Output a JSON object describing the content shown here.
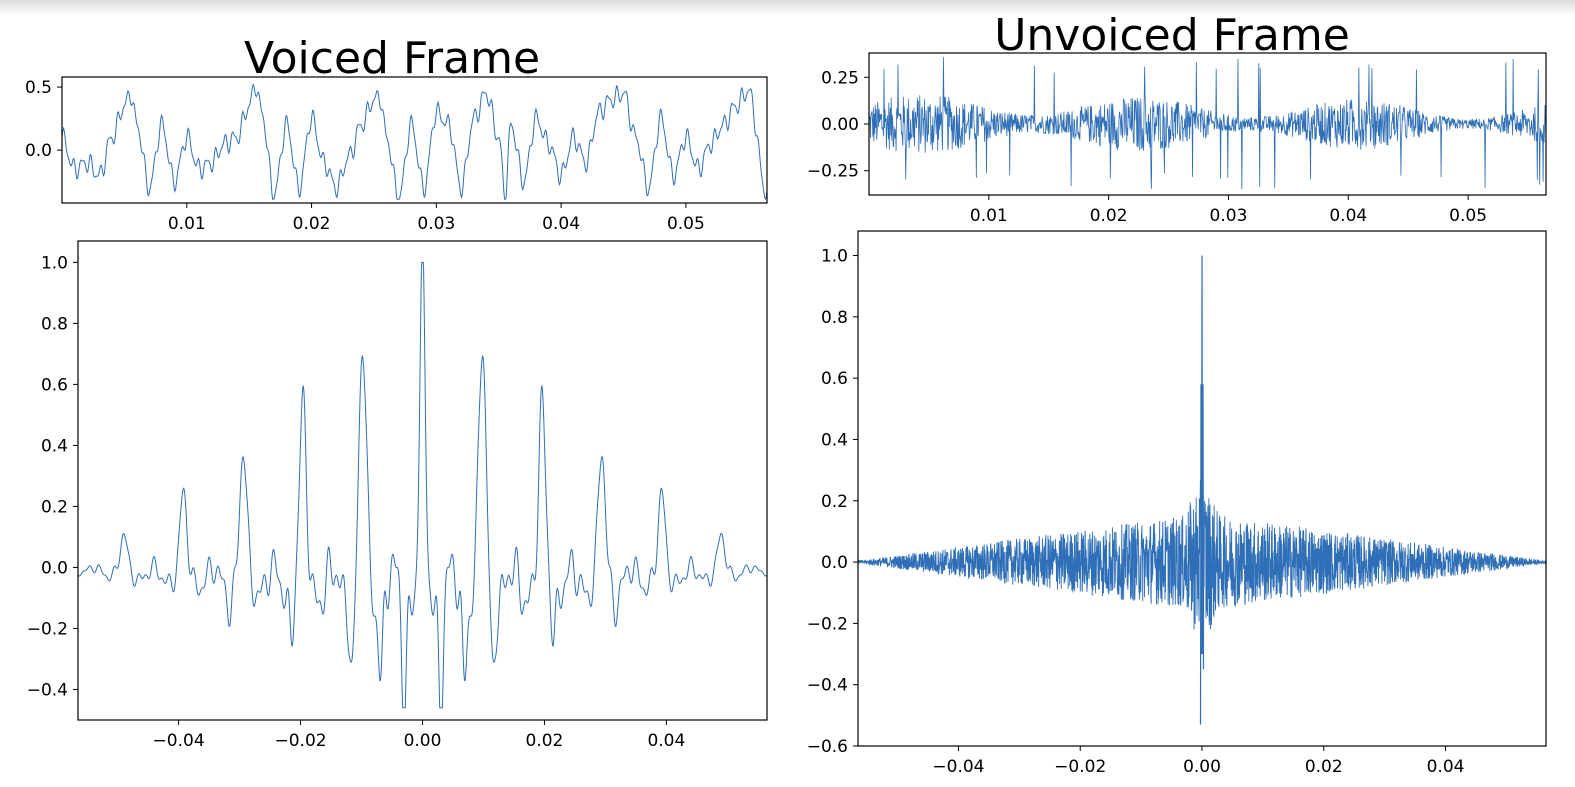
{
  "panels": {
    "voiced": {
      "title": "Voiced Frame"
    },
    "unvoiced": {
      "title": "Unvoiced Frame"
    }
  },
  "colors": {
    "series": "#2f6fb7",
    "axes": "#000000"
  },
  "chart_data": [
    {
      "id": "voiced-waveform",
      "type": "line",
      "title": "Voiced Frame",
      "xlim": [
        0.0,
        0.0565
      ],
      "ylim": [
        -0.42,
        0.58
      ],
      "xticks": [
        0.01,
        0.02,
        0.03,
        0.04,
        0.05
      ],
      "xticklabels": [
        "0.01",
        "0.02",
        "0.03",
        "0.04",
        "0.05"
      ],
      "yticks": [
        0.0,
        0.5
      ],
      "yticklabels": [
        "0.0",
        "0.5"
      ],
      "series": [
        {
          "x": [
            0.0,
            0.001,
            0.002,
            0.003,
            0.004,
            0.005,
            0.0055,
            0.006,
            0.007,
            0.008,
            0.009,
            0.01,
            0.011,
            0.012,
            0.013,
            0.014,
            0.015,
            0.0155,
            0.016,
            0.017,
            0.018,
            0.019,
            0.02,
            0.021,
            0.022,
            0.023,
            0.024,
            0.025,
            0.0255,
            0.026,
            0.027,
            0.028,
            0.029,
            0.03,
            0.031,
            0.032,
            0.033,
            0.034,
            0.035,
            0.0355,
            0.036,
            0.037,
            0.038,
            0.039,
            0.04,
            0.041,
            0.042,
            0.043,
            0.044,
            0.045,
            0.046,
            0.047,
            0.048,
            0.049,
            0.05,
            0.051,
            0.052,
            0.053,
            0.054,
            0.055,
            0.0565
          ],
          "y": [
            0.1,
            -0.15,
            -0.1,
            -0.2,
            0.1,
            0.35,
            0.45,
            0.2,
            -0.3,
            0.2,
            -0.25,
            0.1,
            -0.15,
            -0.1,
            0.05,
            0.1,
            0.35,
            0.52,
            0.3,
            -0.35,
            0.2,
            -0.3,
            0.25,
            -0.1,
            -0.3,
            -0.05,
            0.2,
            0.4,
            0.42,
            0.1,
            -0.38,
            0.2,
            -0.3,
            0.3,
            0.2,
            -0.3,
            0.25,
            0.45,
            0.1,
            -0.35,
            0.2,
            -0.25,
            0.25,
            0.05,
            -0.2,
            0.1,
            -0.1,
            0.3,
            0.4,
            0.45,
            0.1,
            -0.3,
            0.25,
            -0.2,
            0.1,
            -0.15,
            0.05,
            0.2,
            0.35,
            0.47,
            -0.35
          ]
        }
      ]
    },
    {
      "id": "voiced-autocorrelation",
      "type": "line",
      "xlim": [
        -0.0565,
        0.0565
      ],
      "ylim": [
        -0.5,
        1.07
      ],
      "xticks": [
        -0.04,
        -0.02,
        0.0,
        0.02,
        0.04
      ],
      "xticklabels": [
        "−0.04",
        "−0.02",
        "0.00",
        "0.02",
        "0.04"
      ],
      "yticks": [
        -0.4,
        -0.2,
        0.0,
        0.2,
        0.4,
        0.6,
        0.8,
        1.0
      ],
      "yticklabels": [
        "−0.4",
        "−0.2",
        "0.0",
        "0.2",
        "0.4",
        "0.6",
        "0.8",
        "1.0"
      ],
      "peaks": {
        "x": [
          0.0,
          0.0098,
          0.0196,
          0.0294,
          0.0392,
          0.049
        ],
        "y": [
          1.0,
          0.77,
          0.54,
          0.39,
          0.25,
          0.11
        ]
      },
      "troughs": {
        "x": [
          0.003,
          0.0068,
          0.0115,
          0.0215,
          0.0315
        ],
        "y": [
          -0.43,
          -0.35,
          -0.34,
          -0.24,
          -0.17
        ]
      }
    },
    {
      "id": "unvoiced-waveform",
      "type": "line",
      "title": "Unvoiced Frame",
      "xlim": [
        0.0,
        0.0565
      ],
      "ylim": [
        -0.38,
        0.38
      ],
      "xticks": [
        0.01,
        0.02,
        0.03,
        0.04,
        0.05
      ],
      "xticklabels": [
        "0.01",
        "0.02",
        "0.03",
        "0.04",
        "0.05"
      ],
      "yticks": [
        -0.25,
        0.0,
        0.25
      ],
      "yticklabels": [
        "−0.25",
        "0.00",
        "0.25"
      ],
      "noise": {
        "max": 0.36,
        "min": -0.35,
        "typical_amplitude": 0.15
      }
    },
    {
      "id": "unvoiced-autocorrelation",
      "type": "line",
      "xlim": [
        -0.0565,
        0.0565
      ],
      "ylim": [
        -0.6,
        1.08
      ],
      "xticks": [
        -0.04,
        -0.02,
        0.0,
        0.02,
        0.04
      ],
      "xticklabels": [
        "−0.04",
        "−0.02",
        "0.00",
        "0.02",
        "0.04"
      ],
      "yticks": [
        -0.6,
        -0.4,
        -0.2,
        0.0,
        0.2,
        0.4,
        0.6,
        0.8,
        1.0
      ],
      "yticklabels": [
        "−0.6",
        "−0.4",
        "−0.2",
        "0.0",
        "0.2",
        "0.4",
        "0.6",
        "0.8",
        "1.0"
      ],
      "center_peak": 1.0,
      "side_peaks": 0.58,
      "min_value": -0.53,
      "envelope_amplitude": 0.16
    }
  ]
}
